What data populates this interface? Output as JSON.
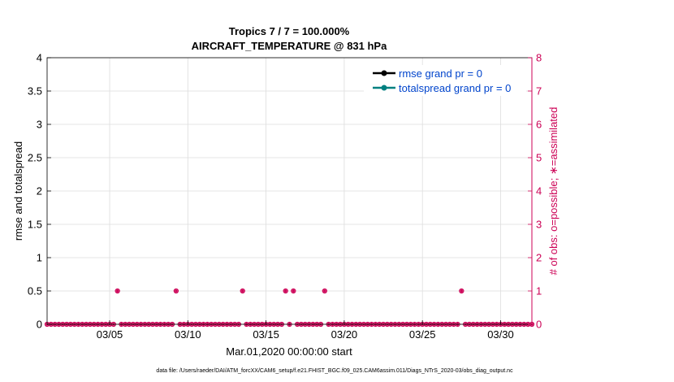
{
  "chart_data": {
    "type": "line",
    "title": "Tropics 7 / 7 = 100.000%",
    "subtitle": "AIRCRAFT_TEMPERATURE @ 831 hPa",
    "xlabel": "Mar.01,2020 00:00:00 start",
    "ylabel_left": "rmse and totalspread",
    "ylabel_right": "# of obs: o=possible; ∗=assimilated",
    "xlim": [
      "2020-03-01",
      "2020-04-01"
    ],
    "x_ticks": [
      "03/05",
      "03/10",
      "03/15",
      "03/20",
      "03/25",
      "03/30"
    ],
    "x_tick_dates": [
      "2020-03-05",
      "2020-03-10",
      "2020-03-15",
      "2020-03-20",
      "2020-03-25",
      "2020-03-30"
    ],
    "ylim_left": [
      0,
      4
    ],
    "y_ticks_left": [
      "0",
      "0.5",
      "1",
      "1.5",
      "2",
      "2.5",
      "3",
      "3.5",
      "4"
    ],
    "ylim_right": [
      0,
      8
    ],
    "y_ticks_right": [
      "0",
      "1",
      "2",
      "3",
      "4",
      "5",
      "6",
      "7",
      "8"
    ],
    "grid": true,
    "legend_position": "top-right",
    "series": [
      {
        "name": "rmse grand pr = 0",
        "color": "#000000",
        "values": []
      },
      {
        "name": "totalspread grand pr = 0",
        "color": "#008080",
        "values": []
      }
    ],
    "obs_series": {
      "color": "#cc0055",
      "bins_per_day": 4,
      "start": "2020-03-01",
      "nonzero": [
        {
          "x": "2020-03-05 12:00",
          "possible": 1,
          "assimilated": 1
        },
        {
          "x": "2020-03-09 06:00",
          "possible": 1,
          "assimilated": 1
        },
        {
          "x": "2020-03-13 12:00",
          "possible": 1,
          "assimilated": 1
        },
        {
          "x": "2020-03-16 06:00",
          "possible": 1,
          "assimilated": 1
        },
        {
          "x": "2020-03-16 18:00",
          "possible": 1,
          "assimilated": 1
        },
        {
          "x": "2020-03-18 18:00",
          "possible": 1,
          "assimilated": 1
        },
        {
          "x": "2020-03-27 12:00",
          "possible": 1,
          "assimilated": 1
        }
      ]
    },
    "colors": {
      "left_axis": "#000000",
      "right_axis": "#cc0055",
      "grid": "#dddddd",
      "legend_text": "#0044cc"
    }
  },
  "footer": "data file: /Users/raeder/DAI/ATM_forcXX/CAM6_setup/f.e21.FHIST_BGC.f09_025.CAM6assim.011/Diags_NTrS_2020-03/obs_diag_output.nc"
}
